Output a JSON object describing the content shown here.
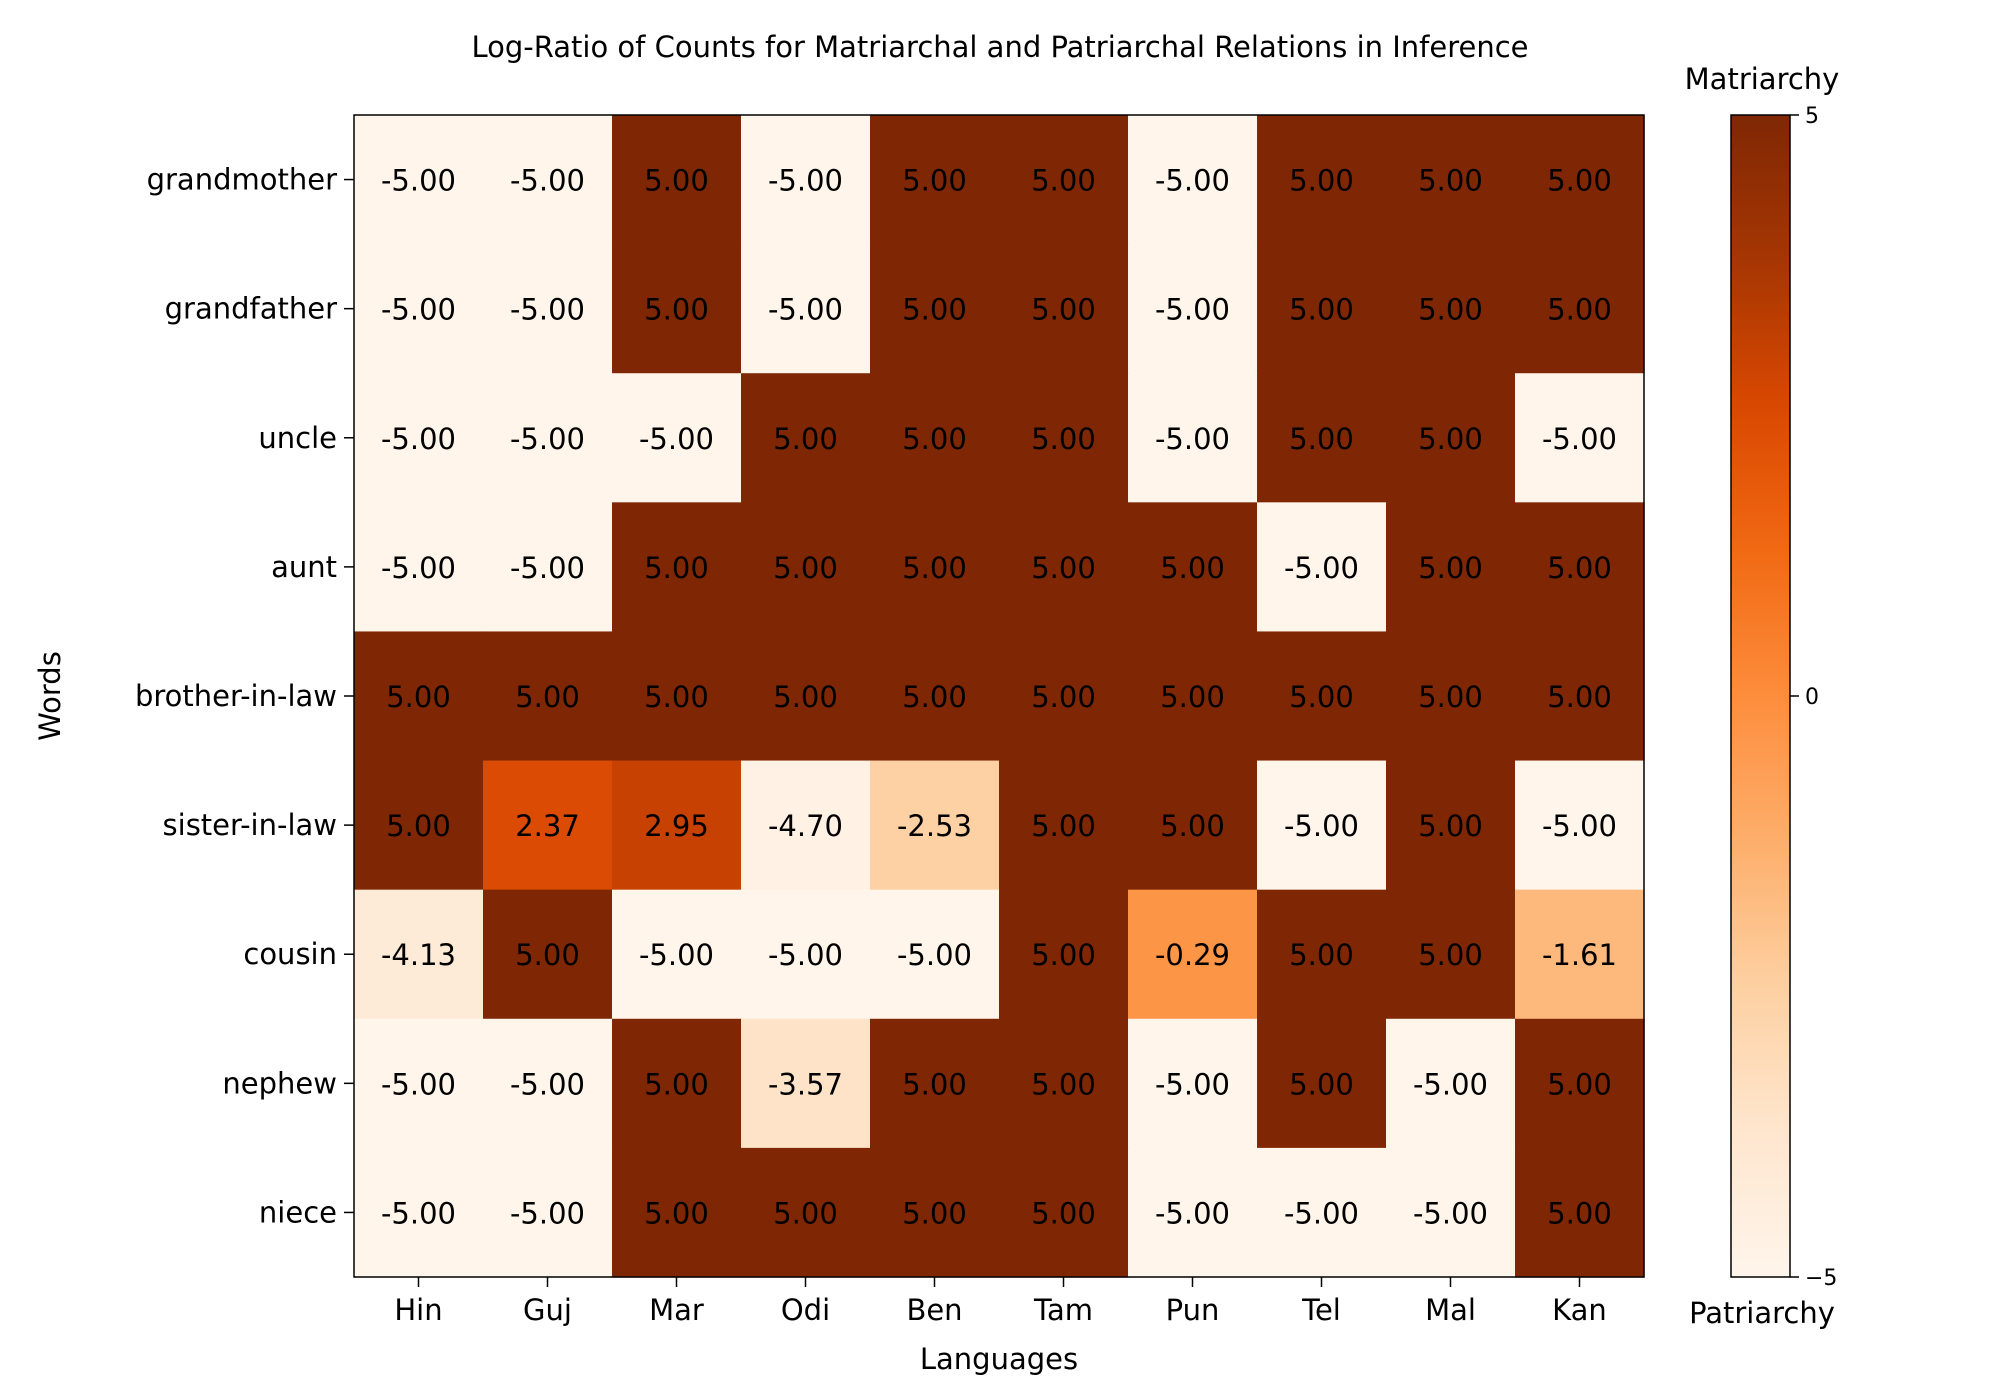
{
  "chart_data": {
    "type": "heatmap",
    "title": "Log-Ratio of Counts for Matriarchal and Patriarchal Relations in Inference",
    "xlabel": "Languages",
    "ylabel": "Words",
    "x_categories": [
      "Hin",
      "Guj",
      "Mar",
      "Odi",
      "Ben",
      "Tam",
      "Pun",
      "Tel",
      "Mal",
      "Kan"
    ],
    "y_categories": [
      "grandmother",
      "grandfather",
      "uncle",
      "aunt",
      "brother-in-law",
      "sister-in-law",
      "cousin",
      "nephew",
      "niece"
    ],
    "values": [
      [
        -5.0,
        -5.0,
        5.0,
        -5.0,
        5.0,
        5.0,
        -5.0,
        5.0,
        5.0,
        5.0
      ],
      [
        -5.0,
        -5.0,
        5.0,
        -5.0,
        5.0,
        5.0,
        -5.0,
        5.0,
        5.0,
        5.0
      ],
      [
        -5.0,
        -5.0,
        -5.0,
        5.0,
        5.0,
        5.0,
        -5.0,
        5.0,
        5.0,
        -5.0
      ],
      [
        -5.0,
        -5.0,
        5.0,
        5.0,
        5.0,
        5.0,
        5.0,
        -5.0,
        5.0,
        5.0
      ],
      [
        5.0,
        5.0,
        5.0,
        5.0,
        5.0,
        5.0,
        5.0,
        5.0,
        5.0,
        5.0
      ],
      [
        5.0,
        2.37,
        2.95,
        -4.7,
        -2.53,
        5.0,
        5.0,
        -5.0,
        5.0,
        -5.0
      ],
      [
        -4.13,
        5.0,
        -5.0,
        -5.0,
        -5.0,
        5.0,
        -0.29,
        5.0,
        5.0,
        -1.61
      ],
      [
        -5.0,
        -5.0,
        5.0,
        -3.57,
        5.0,
        5.0,
        -5.0,
        5.0,
        -5.0,
        5.0
      ],
      [
        -5.0,
        -5.0,
        5.0,
        5.0,
        5.0,
        5.0,
        -5.0,
        -5.0,
        -5.0,
        5.0
      ]
    ],
    "value_range": [
      -5,
      5
    ],
    "colormap": "Oranges",
    "colorbar": {
      "top_label": "Matriarchy",
      "bottom_label": "Patriarchy",
      "ticks": [
        -5,
        0,
        5
      ],
      "tick_labels": [
        "−5",
        "0",
        "5"
      ]
    }
  }
}
